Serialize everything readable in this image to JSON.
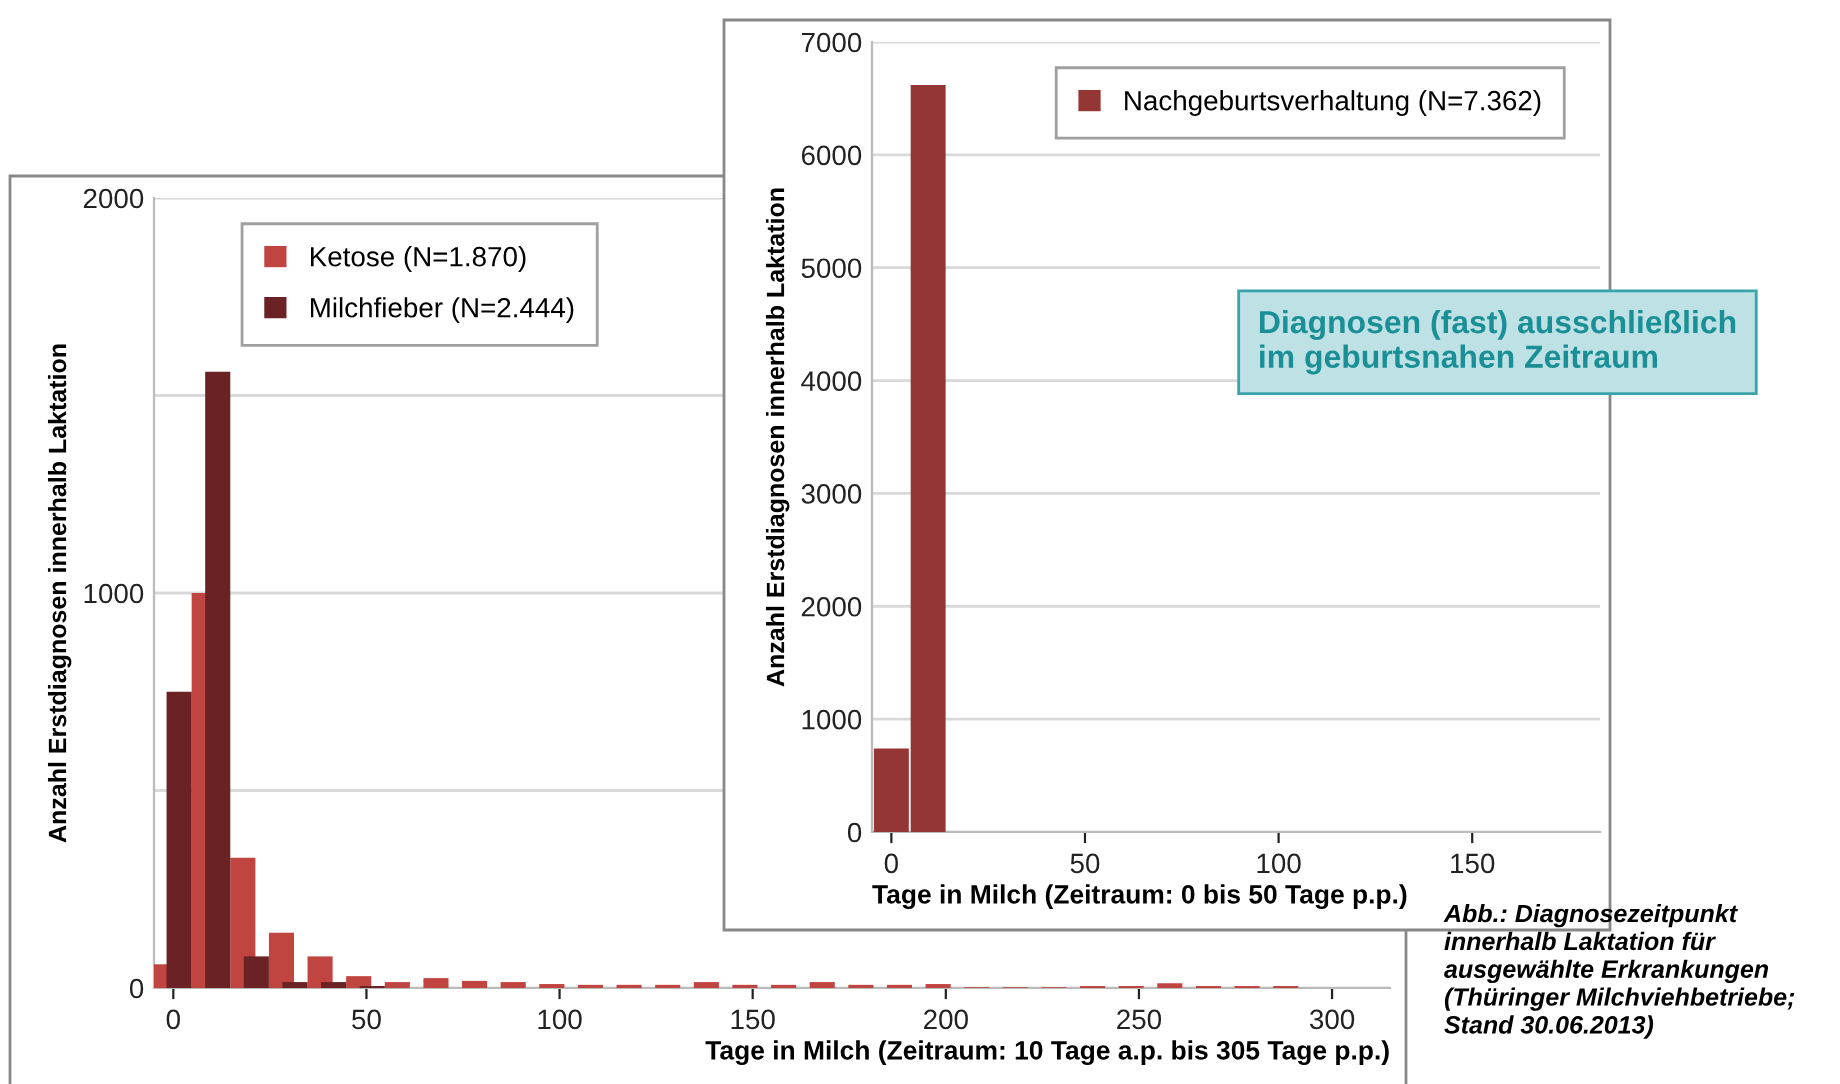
{
  "chart_data": [
    {
      "type": "bar",
      "xlabel": "Tage in Milch (Zeitraum: 10 Tage a.p. bis 305 Tage p.p.)",
      "ylabel": "Anzahl Erstdiagnosen innerhalb Laktation",
      "xlim": [
        -5,
        315
      ],
      "xticks": [
        0,
        50,
        100,
        150,
        200,
        250,
        300
      ],
      "ylim": [
        0,
        2000
      ],
      "yticks": [
        0,
        {
          "value": 500,
          "label": null
        },
        1000,
        {
          "value": 1500,
          "label": null
        },
        2000
      ],
      "grid": "y",
      "legend": "top left",
      "series": [
        {
          "name": "Ketose (N=1.870)",
          "color": "#c0443f",
          "x": [
            -2,
            8,
            18,
            28,
            38,
            48,
            58,
            68,
            78,
            88,
            98,
            108,
            118,
            128,
            138,
            148,
            158,
            168,
            178,
            188,
            198,
            208,
            218,
            228,
            238,
            248,
            258,
            268,
            278,
            288,
            298,
            308
          ],
          "values": [
            60,
            1000,
            330,
            140,
            80,
            30,
            15,
            25,
            18,
            15,
            10,
            8,
            8,
            8,
            15,
            8,
            8,
            15,
            8,
            8,
            10,
            2,
            2,
            2,
            5,
            5,
            12,
            5,
            5,
            5,
            0,
            0
          ]
        },
        {
          "name": "Milchfieber (N=2.444)",
          "color": "#6b2224",
          "x": [
            1.5,
            11.5,
            21.5,
            31.5,
            41.5,
            51.5,
            61.5,
            71.5,
            81.5,
            91.5,
            101.5,
            111.5,
            121.5,
            131.5,
            141.5,
            151.5,
            161.5,
            171.5,
            181.5,
            191.5,
            201.5,
            211.5,
            221.5,
            231.5,
            241.5,
            251.5,
            261.5,
            271.5,
            281.5,
            291.5,
            301.5,
            311.5
          ],
          "values": [
            750,
            1560,
            80,
            15,
            15,
            5,
            0,
            0,
            0,
            0,
            0,
            0,
            0,
            0,
            0,
            0,
            0,
            0,
            0,
            0,
            0,
            0,
            0,
            0,
            0,
            0,
            0,
            0,
            0,
            0,
            0,
            0
          ]
        }
      ]
    },
    {
      "type": "bar",
      "xlabel": "Tage in Milch (Zeitraum: 0 bis 50 Tage p.p.)",
      "ylabel": "Anzahl Erstdiagnosen innerhalb Laktation",
      "xlim": [
        -5,
        183
      ],
      "xticks": [
        0,
        50,
        100,
        150
      ],
      "ylim": [
        0,
        7000
      ],
      "yticks": [
        0,
        1000,
        2000,
        3000,
        4000,
        5000,
        6000,
        7000
      ],
      "grid": "y",
      "legend": "top right",
      "series": [
        {
          "name": "Nachgeburtsverhaltung (N=7.362)",
          "color": "#943634",
          "x": [
            0,
            9.5
          ],
          "values": [
            740,
            6620
          ]
        }
      ],
      "annotations": [
        "Diagnosen (fast) ausschließlich\nim geburtsnahen Zeitraum",
        "Abb.: Diagnosezeitpunkt\ninnerhalb Laktation für\nausgewählte Erkrankungen\n(Thüringer Milchviehbetriebe;\nStand 30.06.2013)"
      ]
    }
  ]
}
